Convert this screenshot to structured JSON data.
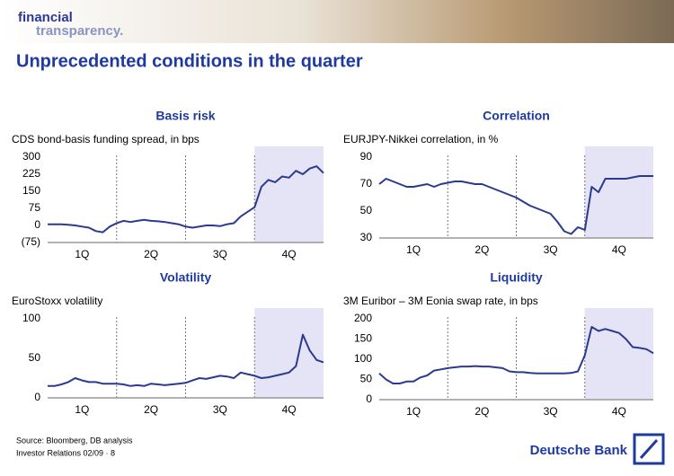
{
  "header": {
    "logo_line1": "financial",
    "logo_line2": "transparency."
  },
  "title": "Unprecedented conditions in the quarter",
  "footer": {
    "source": "Source: Bloomberg, DB analysis",
    "page": "Investor Relations 02/09 · 8",
    "brand": "Deutsche Bank"
  },
  "chart_data": [
    {
      "type": "line",
      "title": "Basis risk",
      "subtitle": "CDS bond-basis funding spread, in bps",
      "color": "#2b3a8f",
      "shade_color": "#e4e4f6",
      "x": [
        0,
        0.1,
        0.2,
        0.3,
        0.4,
        0.5,
        0.6,
        0.7,
        0.8,
        0.9,
        1,
        1.1,
        1.2,
        1.3,
        1.4,
        1.5,
        1.6,
        1.7,
        1.8,
        1.9,
        2,
        2.1,
        2.2,
        2.3,
        2.4,
        2.5,
        2.6,
        2.7,
        2.8,
        2.9,
        3,
        3.1,
        3.2,
        3.3,
        3.4,
        3.5,
        3.6,
        3.7,
        3.8,
        3.9,
        4
      ],
      "values": [
        5,
        5,
        5,
        3,
        0,
        -5,
        -10,
        -25,
        -30,
        -5,
        10,
        20,
        15,
        20,
        25,
        20,
        18,
        15,
        10,
        5,
        -5,
        -10,
        -5,
        0,
        0,
        -3,
        5,
        10,
        40,
        60,
        80,
        170,
        200,
        190,
        215,
        210,
        240,
        225,
        250,
        260,
        230
      ],
      "xlim": [
        0,
        4
      ],
      "xticks": [
        {
          "value": 0.5,
          "label": "1Q"
        },
        {
          "value": 1.5,
          "label": "2Q"
        },
        {
          "value": 2.5,
          "label": "3Q"
        },
        {
          "value": 3.5,
          "label": "4Q"
        }
      ],
      "xdividers": [
        1,
        2,
        3
      ],
      "shade_xlim": [
        3,
        4
      ],
      "ylim": [
        -75,
        300
      ],
      "yticks": [
        {
          "value": -75,
          "label": "(75)"
        },
        0,
        75,
        150,
        225,
        300
      ]
    },
    {
      "type": "line",
      "title": "Correlation",
      "subtitle": "EURJPY-Nikkei correlation, in %",
      "color": "#2b3a8f",
      "shade_color": "#e4e4f6",
      "x": [
        0,
        0.1,
        0.2,
        0.3,
        0.4,
        0.5,
        0.6,
        0.7,
        0.8,
        0.9,
        1,
        1.1,
        1.2,
        1.3,
        1.4,
        1.5,
        1.6,
        1.7,
        1.8,
        1.9,
        2,
        2.1,
        2.2,
        2.3,
        2.4,
        2.5,
        2.6,
        2.7,
        2.8,
        2.9,
        3,
        3.1,
        3.2,
        3.3,
        3.4,
        3.5,
        3.6,
        3.7,
        3.8,
        3.9,
        4
      ],
      "values": [
        70,
        74,
        72,
        70,
        68,
        68,
        69,
        70,
        68,
        70,
        71,
        72,
        72,
        71,
        70,
        70,
        68,
        66,
        64,
        62,
        60,
        57,
        54,
        52,
        50,
        48,
        42,
        35,
        33,
        38,
        36,
        68,
        64,
        74,
        74,
        74,
        74,
        75,
        76,
        76,
        76
      ],
      "xlim": [
        0,
        4
      ],
      "xticks": [
        {
          "value": 0.5,
          "label": "1Q"
        },
        {
          "value": 1.5,
          "label": "2Q"
        },
        {
          "value": 2.5,
          "label": "3Q"
        },
        {
          "value": 3.5,
          "label": "4Q"
        }
      ],
      "xdividers": [
        1,
        2,
        3
      ],
      "shade_xlim": [
        3,
        4
      ],
      "ylim": [
        30,
        90
      ],
      "yticks": [
        30,
        50,
        70,
        90
      ]
    },
    {
      "type": "line",
      "title": "Volatility",
      "subtitle": "EuroStoxx volatility",
      "color": "#2b3a8f",
      "shade_color": "#e4e4f6",
      "x": [
        0,
        0.1,
        0.2,
        0.3,
        0.4,
        0.5,
        0.6,
        0.7,
        0.8,
        0.9,
        1,
        1.1,
        1.2,
        1.3,
        1.4,
        1.5,
        1.6,
        1.7,
        1.8,
        1.9,
        2,
        2.1,
        2.2,
        2.3,
        2.4,
        2.5,
        2.6,
        2.7,
        2.8,
        2.9,
        3,
        3.1,
        3.2,
        3.3,
        3.4,
        3.5,
        3.6,
        3.7,
        3.8,
        3.9,
        4
      ],
      "values": [
        15,
        15,
        17,
        20,
        25,
        22,
        20,
        20,
        18,
        18,
        18,
        17,
        15,
        16,
        15,
        18,
        17,
        16,
        17,
        18,
        19,
        22,
        25,
        24,
        26,
        28,
        27,
        25,
        32,
        30,
        28,
        25,
        26,
        28,
        30,
        32,
        40,
        80,
        60,
        48,
        45
      ],
      "xlim": [
        0,
        4
      ],
      "xticks": [
        {
          "value": 0.5,
          "label": "1Q"
        },
        {
          "value": 1.5,
          "label": "2Q"
        },
        {
          "value": 2.5,
          "label": "3Q"
        },
        {
          "value": 3.5,
          "label": "4Q"
        }
      ],
      "xdividers": [
        1,
        2,
        3
      ],
      "shade_xlim": [
        3,
        4
      ],
      "ylim": [
        0,
        100
      ],
      "yticks": [
        0,
        50,
        100
      ]
    },
    {
      "type": "line",
      "title": "Liquidity",
      "subtitle": "3M Euribor – 3M Eonia swap rate, in bps",
      "color": "#2b3a8f",
      "shade_color": "#e4e4f6",
      "x": [
        0,
        0.1,
        0.2,
        0.3,
        0.4,
        0.5,
        0.6,
        0.7,
        0.8,
        0.9,
        1,
        1.1,
        1.2,
        1.3,
        1.4,
        1.5,
        1.6,
        1.7,
        1.8,
        1.9,
        2,
        2.1,
        2.2,
        2.3,
        2.4,
        2.5,
        2.6,
        2.7,
        2.8,
        2.9,
        3,
        3.1,
        3.2,
        3.3,
        3.4,
        3.5,
        3.6,
        3.7,
        3.8,
        3.9,
        4
      ],
      "values": [
        65,
        50,
        40,
        40,
        45,
        45,
        55,
        60,
        72,
        75,
        78,
        80,
        82,
        82,
        83,
        82,
        82,
        80,
        78,
        70,
        68,
        68,
        66,
        65,
        65,
        65,
        65,
        65,
        66,
        70,
        110,
        180,
        170,
        175,
        170,
        165,
        150,
        130,
        128,
        125,
        115
      ],
      "xlim": [
        0,
        4
      ],
      "xticks": [
        {
          "value": 0.5,
          "label": "1Q"
        },
        {
          "value": 1.5,
          "label": "2Q"
        },
        {
          "value": 2.5,
          "label": "3Q"
        },
        {
          "value": 3.5,
          "label": "4Q"
        }
      ],
      "xdividers": [
        1,
        2,
        3
      ],
      "shade_xlim": [
        3,
        4
      ],
      "ylim": [
        0,
        200
      ],
      "yticks": [
        0,
        50,
        100,
        150,
        200
      ]
    }
  ]
}
